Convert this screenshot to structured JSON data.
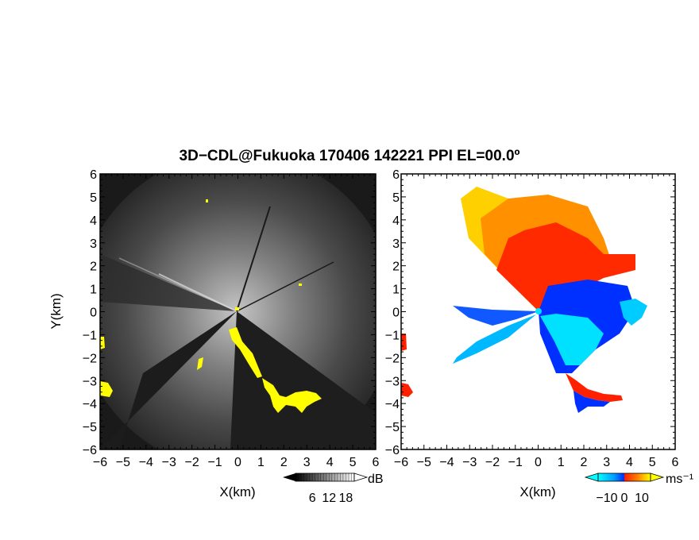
{
  "title": "3D−CDL@Fukuoka 170406 142221 PPI EL=00.0º",
  "chart_data": [
    {
      "type": "heatmap",
      "panel": "left",
      "quantity": "reflectivity",
      "xlabel": "X(km)",
      "ylabel": "Y(km)",
      "xlim": [
        -6,
        6
      ],
      "ylim": [
        -6,
        6
      ],
      "xticks": [
        "−6",
        "−5",
        "−4",
        "−3",
        "−2",
        "−1",
        "0",
        "1",
        "2",
        "3",
        "4",
        "5",
        "6"
      ],
      "yticks": [
        "−6",
        "−5",
        "−4",
        "−3",
        "−2",
        "−1",
        "0",
        "1",
        "2",
        "3",
        "4",
        "5",
        "6"
      ],
      "background_color": "#1a1a1a",
      "highlight_color": "#ffff00",
      "colorbar": {
        "label": "dB",
        "ticks": [
          "6",
          "12",
          "18"
        ],
        "range": [
          0,
          21
        ]
      }
    },
    {
      "type": "heatmap",
      "panel": "right",
      "quantity": "radial velocity",
      "xlabel": "X(km)",
      "xlim": [
        -6,
        6
      ],
      "ylim": [
        -6,
        6
      ],
      "xticks": [
        "−6",
        "−5",
        "−4",
        "−3",
        "−2",
        "−1",
        "0",
        "1",
        "2",
        "3",
        "4",
        "5",
        "6"
      ],
      "yticks": [
        "−6",
        "−5",
        "−4",
        "−3",
        "−2",
        "−1",
        "0",
        "1",
        "2",
        "3",
        "4",
        "5",
        "6"
      ],
      "background_color": "#ffffff",
      "colorbar": {
        "label": "ms⁻¹",
        "ticks": [
          "−10",
          "0",
          "10"
        ],
        "range": [
          -15,
          15
        ],
        "colors": [
          "#00ffff",
          "#00a0ff",
          "#0030ff",
          "#ff2000",
          "#ff8000",
          "#ffff00"
        ]
      }
    }
  ]
}
